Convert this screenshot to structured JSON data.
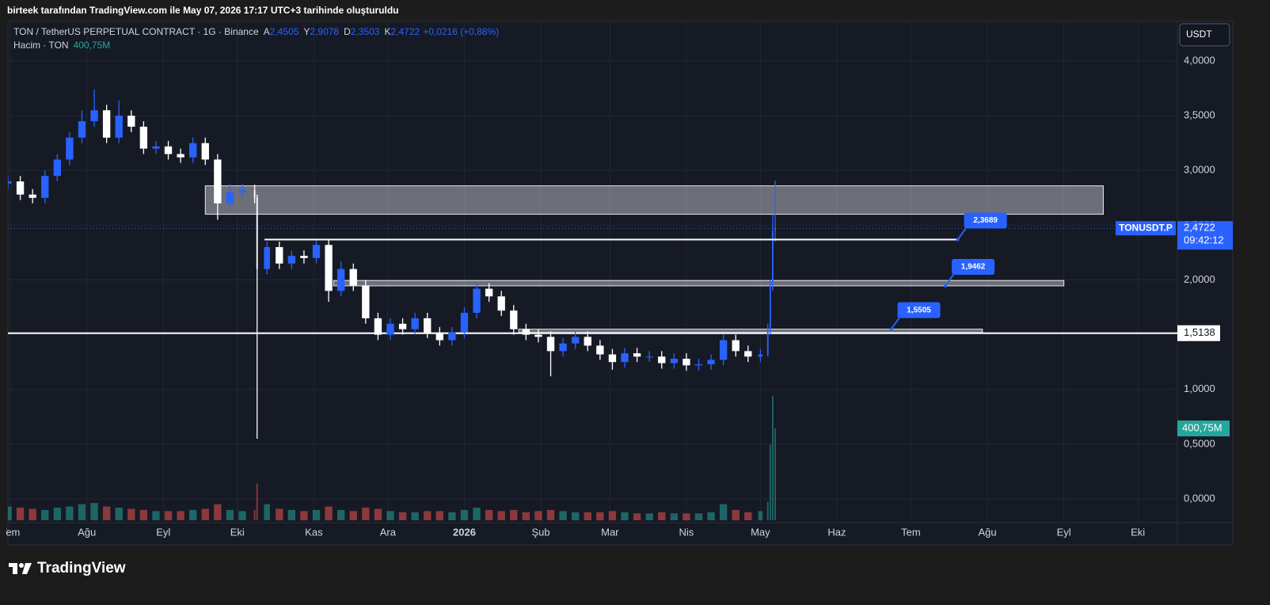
{
  "chart_data": {
    "type": "candlestick",
    "header_note": "birteek tarafından TradingView.com ile May 07, 2026 17:17 UTC+3 tarihinde oluşturuldu",
    "symbol_title": "TON / TetherUS PERPETUAL CONTRACT · 1G · Binance",
    "legend_ohlc": [
      {
        "key": "A",
        "value": "2,4505"
      },
      {
        "key": "Y",
        "value": "2,9078"
      },
      {
        "key": "D",
        "value": "2,3503"
      },
      {
        "key": "K",
        "value": "2,4722"
      }
    ],
    "change": "+0,0216 (+0,88%)",
    "volume_title": "Hacim · TON",
    "volume_value": "400,75M",
    "currency": "USDT",
    "brand": "TradingView",
    "up_color": "#2962ff",
    "down_color": "#ffffff",
    "volume_up_color": "#26a69a",
    "volume_down_color": "#ef5350",
    "grid": true,
    "x": [
      0,
      5,
      10,
      15,
      20,
      25,
      30,
      35,
      40,
      45,
      50,
      55,
      60,
      65,
      70,
      75,
      80,
      85,
      90,
      95,
      100,
      101,
      105,
      110,
      115,
      120,
      125,
      130,
      135,
      140,
      145,
      150,
      155,
      160,
      165,
      170,
      175,
      180,
      185,
      190,
      195,
      200,
      205,
      210,
      215,
      220,
      225,
      230,
      235,
      240,
      245,
      250,
      255,
      260,
      265,
      270,
      275,
      280,
      285,
      290,
      295,
      300,
      305,
      308,
      309,
      310,
      311
    ],
    "open": [
      2.88,
      2.9,
      2.78,
      2.75,
      2.95,
      3.1,
      3.3,
      3.45,
      3.55,
      3.3,
      3.5,
      3.4,
      3.2,
      3.22,
      3.15,
      3.12,
      3.25,
      3.1,
      2.7,
      2.8,
      2.82,
      2.75,
      2.1,
      2.3,
      2.15,
      2.22,
      2.2,
      2.32,
      1.9,
      2.1,
      1.95,
      1.65,
      1.5,
      1.6,
      1.55,
      1.65,
      1.52,
      1.45,
      1.52,
      1.7,
      1.92,
      1.85,
      1.72,
      1.55,
      1.5,
      1.48,
      1.35,
      1.42,
      1.48,
      1.4,
      1.32,
      1.25,
      1.33,
      1.3,
      1.3,
      1.24,
      1.28,
      1.22,
      1.23,
      1.27,
      1.45,
      1.35,
      1.3,
      1.32,
      1.55,
      1.95,
      2.4505
    ],
    "high": [
      2.95,
      2.95,
      2.83,
      3.0,
      3.15,
      3.35,
      3.55,
      3.74,
      3.6,
      3.64,
      3.55,
      3.45,
      3.27,
      3.27,
      3.2,
      3.3,
      3.3,
      3.15,
      2.88,
      2.88,
      2.87,
      2.78,
      2.35,
      2.35,
      2.27,
      2.27,
      2.37,
      2.37,
      2.17,
      2.15,
      2.0,
      1.7,
      1.65,
      1.65,
      1.7,
      1.7,
      1.57,
      1.57,
      1.75,
      1.97,
      1.97,
      1.9,
      1.77,
      1.6,
      1.55,
      1.53,
      1.47,
      1.53,
      1.53,
      1.45,
      1.37,
      1.38,
      1.38,
      1.35,
      1.35,
      1.33,
      1.33,
      1.28,
      1.32,
      1.5,
      1.5,
      1.4,
      1.37,
      1.6,
      2.0,
      2.6,
      2.9078
    ],
    "low": [
      2.83,
      2.73,
      2.7,
      2.7,
      2.9,
      3.05,
      3.25,
      3.4,
      3.25,
      3.25,
      3.35,
      3.15,
      3.15,
      3.1,
      3.07,
      3.07,
      3.05,
      2.55,
      2.65,
      2.75,
      2.7,
      0.55,
      2.05,
      2.1,
      2.1,
      2.15,
      2.15,
      1.8,
      1.85,
      1.9,
      1.6,
      1.45,
      1.45,
      1.5,
      1.5,
      1.47,
      1.4,
      1.4,
      1.47,
      1.65,
      1.8,
      1.67,
      1.5,
      1.45,
      1.43,
      1.12,
      1.3,
      1.37,
      1.35,
      1.27,
      1.18,
      1.2,
      1.25,
      1.25,
      1.19,
      1.19,
      1.17,
      1.17,
      1.18,
      1.22,
      1.3,
      1.25,
      1.25,
      1.3,
      1.5,
      1.9,
      2.3503
    ],
    "close": [
      2.9,
      2.78,
      2.75,
      2.95,
      3.1,
      3.3,
      3.45,
      3.55,
      3.3,
      3.5,
      3.4,
      3.2,
      3.22,
      3.15,
      3.12,
      3.25,
      3.1,
      2.7,
      2.8,
      2.82,
      2.75,
      2.1,
      2.3,
      2.15,
      2.22,
      2.2,
      2.32,
      1.9,
      2.1,
      1.95,
      1.65,
      1.5,
      1.6,
      1.55,
      1.65,
      1.52,
      1.45,
      1.52,
      1.7,
      1.92,
      1.85,
      1.72,
      1.55,
      1.5,
      1.48,
      1.35,
      1.42,
      1.48,
      1.4,
      1.32,
      1.25,
      1.33,
      1.3,
      1.3,
      1.24,
      1.28,
      1.22,
      1.23,
      1.27,
      1.45,
      1.35,
      1.3,
      1.32,
      1.55,
      1.95,
      2.4505,
      2.4722
    ],
    "volume": [
      60,
      55,
      50,
      45,
      55,
      60,
      70,
      75,
      60,
      55,
      50,
      45,
      40,
      40,
      40,
      45,
      50,
      70,
      45,
      40,
      45,
      160,
      70,
      50,
      45,
      40,
      45,
      60,
      45,
      40,
      55,
      50,
      40,
      35,
      35,
      40,
      40,
      35,
      45,
      55,
      45,
      40,
      45,
      35,
      40,
      45,
      40,
      35,
      35,
      35,
      40,
      35,
      30,
      30,
      35,
      30,
      30,
      30,
      35,
      70,
      45,
      35,
      40,
      80,
      330,
      542,
      400.75
    ],
    "volume_lim": [
      0,
      2177
    ],
    "xlim": [
      0,
      474
    ],
    "xticks": [
      {
        "value": 1,
        "label": "Tem"
      },
      {
        "value": 32,
        "label": "Ağu"
      },
      {
        "value": 63,
        "label": "Eyl"
      },
      {
        "value": 93,
        "label": "Eki"
      },
      {
        "value": 124,
        "label": "Kas"
      },
      {
        "value": 154,
        "label": "Ara"
      },
      {
        "value": 185,
        "label": "2026"
      },
      {
        "value": 216,
        "label": "Şub"
      },
      {
        "value": 244,
        "label": "Mar"
      },
      {
        "value": 275,
        "label": "Nis"
      },
      {
        "value": 305,
        "label": "May"
      },
      {
        "value": 336,
        "label": "Haz"
      },
      {
        "value": 366,
        "label": "Tem"
      },
      {
        "value": 397,
        "label": "Ağu"
      },
      {
        "value": 428,
        "label": "Eyl"
      },
      {
        "value": 458,
        "label": "Eki"
      }
    ],
    "ylim": [
      -0.217,
      4.362
    ],
    "yticks": [
      {
        "value": 0,
        "label": "0,0000"
      },
      {
        "value": 0.5,
        "label": "0,5000"
      },
      {
        "value": 1,
        "label": "1,0000"
      },
      {
        "value": 1.5,
        "label": "1,5000"
      },
      {
        "value": 2,
        "label": "2,0000"
      },
      {
        "value": 2.5,
        "label": "2,5000"
      },
      {
        "value": 3,
        "label": "3,0000"
      },
      {
        "value": 3.5,
        "label": "3,5000"
      },
      {
        "value": 4,
        "label": "4,0000"
      }
    ],
    "last_price": {
      "value": 2.4722,
      "label": "2,4722",
      "symbol": "TONUSDT.P",
      "countdown": "09:42:12"
    },
    "last_volume": {
      "value": 400.75,
      "label": "400,75M"
    },
    "zones": [
      {
        "x": [
          80,
          444
        ],
        "y": [
          2.6,
          2.86
        ]
      },
      {
        "x": [
          132,
          428
        ],
        "y": [
          1.9462,
          1.995
        ]
      },
      {
        "x": [
          207,
          395
        ],
        "y": [
          1.52,
          1.5505
        ]
      }
    ],
    "levels": [
      {
        "value": 1.5138,
        "label": "1,5138"
      }
    ],
    "callouts": [
      {
        "value": 2.3689,
        "label": "2,3689",
        "x": [
          104,
          385
        ],
        "anchor_x": 385
      },
      {
        "value": 1.9462,
        "label": "1,9462",
        "anchor_x": 380
      },
      {
        "value": 1.5505,
        "label": "1,5505",
        "anchor_x": 358
      }
    ]
  }
}
